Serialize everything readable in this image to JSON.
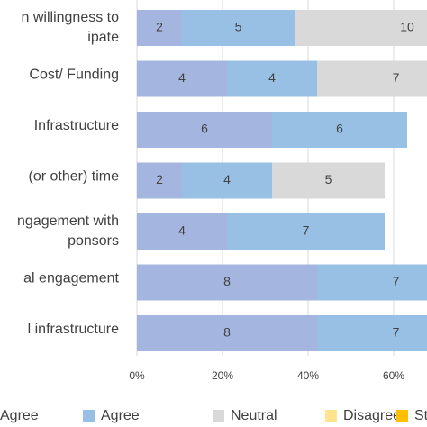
{
  "chart_data": {
    "type": "stacked-barh",
    "categories": [
      [
        "n willingness to",
        "ipate"
      ],
      [
        "Cost/ Funding"
      ],
      [
        "Infrastructure"
      ],
      [
        "(or other) time"
      ],
      [
        "ngagement with",
        "ponsors"
      ],
      [
        "al engagement"
      ],
      [
        "l infrastructure"
      ]
    ],
    "series": [
      {
        "name": "Agree",
        "color": "#a4b6df",
        "values": [
          2,
          4,
          6,
          2,
          4,
          8,
          8
        ]
      },
      {
        "name": "Agree",
        "color": "#98c0e4",
        "values": [
          5,
          4,
          6,
          4,
          7,
          7,
          7
        ]
      },
      {
        "name": "Neutral",
        "color": "#d9d9d9",
        "values": [
          10,
          7,
          null,
          5,
          null,
          null,
          null
        ]
      },
      {
        "name": "Disagree",
        "color": "#ffe38f",
        "values": [
          null,
          null,
          null,
          null,
          null,
          null,
          null
        ]
      },
      {
        "name": "Strong",
        "color": "#ffc000",
        "values": [
          null,
          null,
          null,
          null,
          null,
          null,
          null
        ]
      }
    ],
    "xlim": [
      0,
      12.88
    ],
    "xticks": [
      {
        "value": 0,
        "label": "0%"
      },
      {
        "value": 3.8,
        "label": "20%"
      },
      {
        "value": 7.6,
        "label": "40%"
      },
      {
        "value": 11.4,
        "label": "60%"
      }
    ],
    "grid": true
  }
}
